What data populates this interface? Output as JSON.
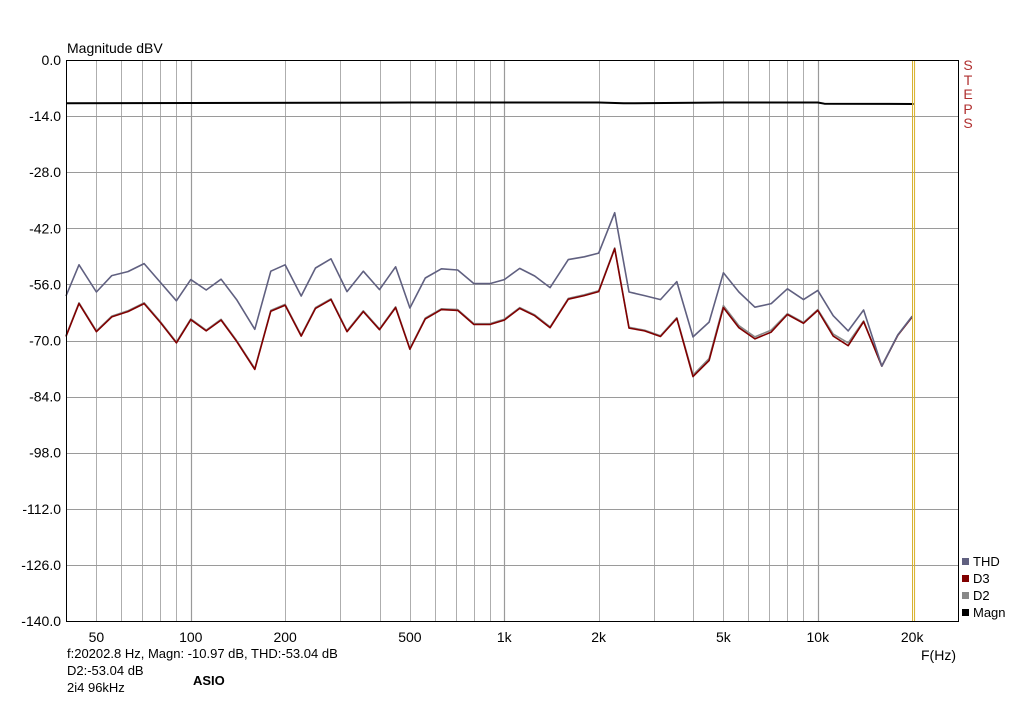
{
  "chart_data": {
    "type": "line",
    "title": "Magnitude dBV",
    "xlabel": "F(Hz)",
    "ylabel": "",
    "xscale": "log",
    "xlim": [
      40,
      28000
    ],
    "ylim": [
      -140,
      0
    ],
    "grid": true,
    "y_ticks": [
      "0.0",
      "-14.0",
      "-28.0",
      "-42.0",
      "-56.0",
      "-70.0",
      "-84.0",
      "-98.0",
      "-112.0",
      "-126.0",
      "-140.0"
    ],
    "y_tick_values": [
      0,
      -14,
      -28,
      -42,
      -56,
      -70,
      -84,
      -98,
      -112,
      -126,
      -140
    ],
    "x_ticks": [
      "50",
      "100",
      "200",
      "500",
      "1k",
      "2k",
      "5k",
      "10k",
      "20k"
    ],
    "x_tick_values": [
      50,
      100,
      200,
      500,
      1000,
      2000,
      5000,
      10000,
      20000
    ],
    "marker_frequency": 20202.8,
    "legend_position": "bottom-right",
    "series": [
      {
        "name": "Magn",
        "color": "#000000",
        "x": [
          40,
          500,
          1000,
          2000,
          2400,
          5000,
          10000,
          10500,
          20202
        ],
        "y": [
          -10.8,
          -10.6,
          -10.6,
          -10.6,
          -10.8,
          -10.6,
          -10.6,
          -10.9,
          -10.97
        ]
      },
      {
        "name": "D2",
        "color": "#888888",
        "x": [
          40,
          44,
          50,
          56,
          63,
          71,
          80,
          90,
          100,
          112,
          125,
          140,
          160,
          180,
          200,
          225,
          250,
          280,
          315,
          355,
          400,
          450,
          500,
          560,
          630,
          710,
          800,
          900,
          1000,
          1120,
          1250,
          1400,
          1600,
          1800,
          2000,
          2250,
          2500,
          2800,
          3150,
          3550,
          4000,
          4500,
          5000,
          5600,
          6300,
          7100,
          8000,
          9000,
          10000,
          11200,
          12500,
          14000,
          16000,
          18000,
          20000
        ],
        "y": [
          -68.8,
          -60.6,
          -67.6,
          -63.9,
          -62.6,
          -60.6,
          -65.3,
          -70.4,
          -64.6,
          -67.4,
          -64.7,
          -70.0,
          -77.0,
          -62.5,
          -61.0,
          -68.7,
          -61.8,
          -59.6,
          -67.6,
          -62.6,
          -67.1,
          -61.6,
          -72.0,
          -64.4,
          -62.1,
          -62.3,
          -65.8,
          -65.8,
          -64.7,
          -61.8,
          -63.6,
          -66.6,
          -59.5,
          -58.6,
          -57.6,
          -46.9,
          -66.7,
          -67.4,
          -68.8,
          -64.3,
          -78.6,
          -74.5,
          -61.3,
          -66.3,
          -69.1,
          -67.4,
          -63.3,
          -65.5,
          -62.3,
          -68.4,
          -70.6,
          -65.1,
          -76.4,
          -68.7,
          -64.1
        ]
      },
      {
        "name": "D3",
        "color": "#800000",
        "x": [
          40,
          44,
          50,
          56,
          63,
          71,
          80,
          90,
          100,
          112,
          125,
          140,
          160,
          180,
          200,
          225,
          250,
          280,
          315,
          355,
          400,
          450,
          500,
          560,
          630,
          710,
          800,
          900,
          1000,
          1120,
          1250,
          1400,
          1600,
          1800,
          2000,
          2250,
          2500,
          2800,
          3150,
          3550,
          4000,
          4500,
          5000,
          5600,
          6300,
          7100,
          8000,
          9000,
          10000,
          11200,
          12500,
          14000,
          16000,
          18000,
          20000
        ],
        "y": [
          -69.0,
          -60.8,
          -67.8,
          -64.1,
          -62.8,
          -60.8,
          -65.5,
          -70.6,
          -64.8,
          -67.6,
          -64.9,
          -70.2,
          -77.2,
          -62.7,
          -61.2,
          -68.9,
          -62.0,
          -59.8,
          -67.8,
          -62.8,
          -67.3,
          -61.8,
          -72.2,
          -64.6,
          -62.3,
          -62.5,
          -66.0,
          -66.0,
          -64.9,
          -62.0,
          -63.8,
          -66.8,
          -59.7,
          -58.8,
          -57.8,
          -47.1,
          -66.9,
          -67.6,
          -69.0,
          -64.5,
          -79.0,
          -75.0,
          -61.8,
          -66.8,
          -69.6,
          -67.9,
          -63.5,
          -65.7,
          -62.5,
          -68.9,
          -71.3,
          -65.3,
          -76.4,
          -68.7,
          -64.1
        ]
      },
      {
        "name": "THD",
        "color": "#606080",
        "x": [
          40,
          44,
          50,
          56,
          63,
          71,
          80,
          90,
          100,
          112,
          125,
          140,
          160,
          180,
          200,
          225,
          250,
          280,
          315,
          355,
          400,
          450,
          500,
          560,
          630,
          710,
          800,
          900,
          1000,
          1120,
          1250,
          1400,
          1600,
          1800,
          2000,
          2250,
          2500,
          2800,
          3150,
          3550,
          4000,
          4500,
          5000,
          5600,
          6300,
          7100,
          8000,
          9000,
          10000,
          11200,
          12500,
          14000,
          16000,
          18000,
          20000
        ],
        "y": [
          -58.9,
          -51.1,
          -57.9,
          -53.8,
          -52.8,
          -50.8,
          -55.5,
          -60.1,
          -54.8,
          -57.4,
          -54.7,
          -59.8,
          -67.2,
          -52.7,
          -51.1,
          -58.9,
          -51.9,
          -49.6,
          -57.8,
          -52.7,
          -57.3,
          -51.6,
          -61.9,
          -54.4,
          -52.1,
          -52.4,
          -55.8,
          -55.8,
          -54.8,
          -52.0,
          -53.9,
          -56.8,
          -49.8,
          -49.1,
          -48.2,
          -38.1,
          -57.9,
          -58.8,
          -59.8,
          -55.3,
          -69.1,
          -65.4,
          -53.1,
          -57.9,
          -61.7,
          -60.8,
          -57.1,
          -59.8,
          -57.5,
          -63.8,
          -67.6,
          -62.4,
          -76.4,
          -68.6,
          -63.9
        ]
      }
    ]
  },
  "legend": [
    {
      "name": "THD",
      "color": "#606080"
    },
    {
      "name": "D3",
      "color": "#800000"
    },
    {
      "name": "D2",
      "color": "#888888"
    },
    {
      "name": "Magn",
      "color": "#000000"
    }
  ],
  "steps_label": "STEPS",
  "readout": {
    "line1": "f:20202.8 Hz, Magn: -10.97 dB, THD:-53.04  dB",
    "line2": "D2:-53.04 dB",
    "line3": "2i4 96kHz",
    "driver": "ASIO"
  },
  "colors": {
    "grid": "#9a9a9a",
    "axis_frame": "#000000",
    "cursor": "#d9b22a",
    "steps": "#b03030"
  }
}
